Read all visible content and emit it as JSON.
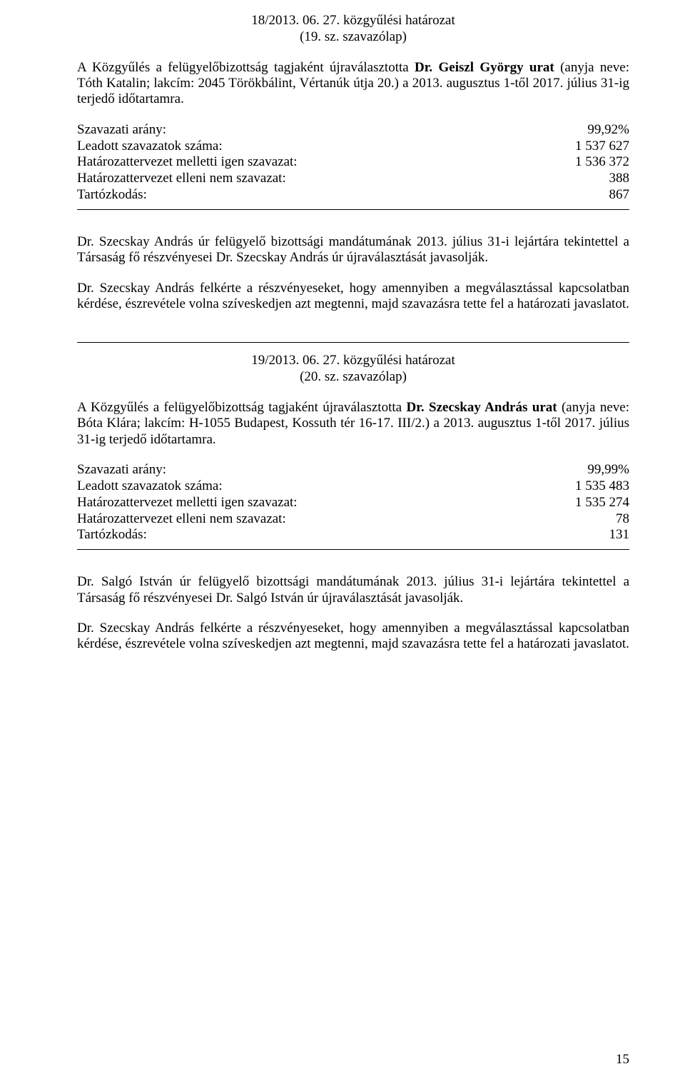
{
  "res18": {
    "title_line1": "18/2013. 06. 27. közgyűlési határozat",
    "title_line2": "(19. sz. szavazólap)",
    "para_pre": "A Közgyűlés a felügyelőbizottság tagjaként újraválasztotta ",
    "para_bold": "Dr. Geiszl György urat",
    "para_post": " (anyja neve: Tóth Katalin; lakcím: 2045 Törökbálint, Vértanúk útja 20.) a 2013. augusztus 1-től 2017. július 31-ig terjedő időtartamra.",
    "vote": {
      "rows": [
        {
          "label": "Szavazati arány:",
          "value": "99,92%"
        },
        {
          "label": "Leadott szavazatok száma:",
          "value": "1 537 627"
        },
        {
          "label": "Határozattervezet melletti igen szavazat:",
          "value": "1 536 372"
        },
        {
          "label": "Határozattervezet elleni nem szavazat:",
          "value": "388"
        },
        {
          "label": "Tartózkodás:",
          "value": "867"
        }
      ]
    }
  },
  "mid": {
    "para1": "Dr. Szecskay András úr felügyelő bizottsági mandátumának 2013. július 31-i lejártára tekintettel a Társaság fő részvényesei Dr. Szecskay András úr újraválasztását javasolják.",
    "para2": "Dr. Szecskay András felkérte a részvényeseket, hogy amennyiben a megválasztással kapcsolatban kérdése, észrevétele volna szíveskedjen azt megtenni, majd szavazásra tette fel a határozati javaslatot."
  },
  "res19": {
    "title_line1": "19/2013. 06. 27. közgyűlési határozat",
    "title_line2": "(20. sz. szavazólap)",
    "para_pre": "A Közgyűlés a felügyelőbizottság tagjaként újraválasztotta ",
    "para_bold": "Dr. Szecskay András urat",
    "para_post": " (anyja neve: Bóta Klára; lakcím: H-1055 Budapest, Kossuth tér 16-17. III/2.) a 2013. augusztus 1-től 2017. július 31-ig terjedő időtartamra.",
    "vote": {
      "rows": [
        {
          "label": "Szavazati arány:",
          "value": "99,99%"
        },
        {
          "label": "Leadott szavazatok száma:",
          "value": "1 535 483"
        },
        {
          "label": "Határozattervezet melletti igen szavazat:",
          "value": "1 535 274"
        },
        {
          "label": "Határozattervezet elleni nem szavazat:",
          "value": "78"
        },
        {
          "label": "Tartózkodás:",
          "value": "131"
        }
      ]
    }
  },
  "tail": {
    "para1": "Dr. Salgó István úr felügyelő bizottsági mandátumának 2013. július 31-i lejártára tekintettel a Társaság fő részvényesei Dr. Salgó István úr újraválasztását javasolják.",
    "para2": "Dr. Szecskay András felkérte a részvényeseket, hogy amennyiben a megválasztással kapcsolatban kérdése, észrevétele volna szíveskedjen azt megtenni, majd szavazásra tette fel a határozati javaslatot."
  },
  "page_number": "15"
}
